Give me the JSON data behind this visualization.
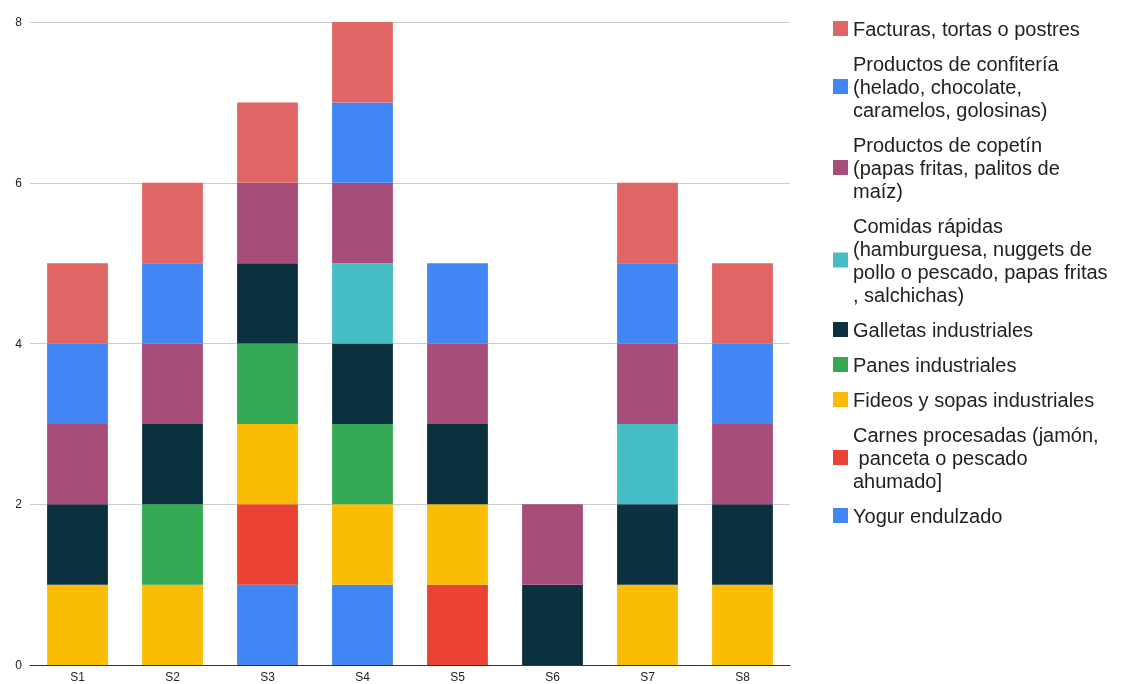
{
  "chart_data": {
    "type": "bar",
    "stacked": true,
    "categories": [
      "S1",
      "S2",
      "S3",
      "S4",
      "S5",
      "S6",
      "S7",
      "S8"
    ],
    "series": [
      {
        "name": "Yogur endulzado",
        "color": "#4285f4",
        "values": [
          null,
          null,
          1,
          1,
          null,
          null,
          null,
          null
        ]
      },
      {
        "name": "Carnes procesadas (jamón, panceta o pescado ahumado]",
        "color": "#ea4335",
        "values": [
          null,
          null,
          1,
          null,
          1,
          null,
          null,
          null
        ]
      },
      {
        "name": "Fideos y sopas industriales",
        "color": "#fbbc04",
        "values": [
          1,
          1,
          1,
          1,
          1,
          null,
          1,
          1
        ]
      },
      {
        "name": "Panes industriales",
        "color": "#34a853",
        "values": [
          null,
          1,
          1,
          1,
          null,
          null,
          null,
          null
        ]
      },
      {
        "name": "Galletas industriales",
        "color": "#0b313f",
        "values": [
          1,
          1,
          1,
          1,
          1,
          1,
          1,
          1
        ]
      },
      {
        "name": "Comidas rápidas (hamburguesa, nuggets de pollo o pescado, papas fritas, salchichas)",
        "color": "#46bdc6",
        "values": [
          null,
          null,
          null,
          1,
          null,
          null,
          1,
          null
        ]
      },
      {
        "name": "Productos de copetín (papas fritas, palitos de maíz)",
        "color": "#a64d79",
        "values": [
          1,
          1,
          1,
          1,
          1,
          1,
          1,
          1
        ]
      },
      {
        "name": "Productos de confitería (helado, chocolate, caramelos, golosinas)",
        "color": "#4285f4",
        "values": [
          1,
          1,
          null,
          1,
          1,
          null,
          1,
          1
        ]
      },
      {
        "name": "Facturas, tortas o postres",
        "color": "#e06666",
        "values": [
          1,
          1,
          1,
          1,
          null,
          null,
          1,
          1
        ]
      }
    ],
    "ylim": [
      0,
      8
    ],
    "yticks": [
      0,
      2,
      4,
      6,
      8
    ],
    "grid": "y",
    "legend": "right"
  }
}
